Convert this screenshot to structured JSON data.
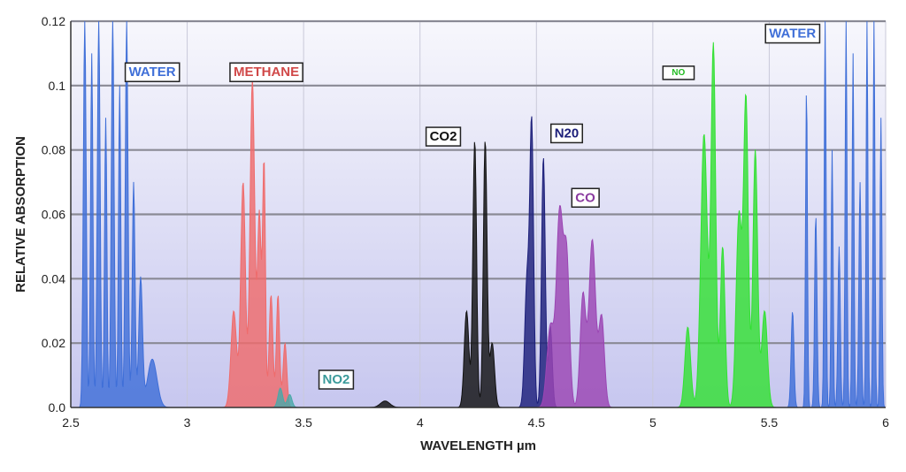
{
  "chart_data": {
    "type": "area",
    "title": "",
    "xlabel": "WAVELENGTH µm",
    "ylabel": "RELATIVE ABSORPTION",
    "xlim": [
      2.5,
      6
    ],
    "ylim": [
      0,
      0.12
    ],
    "x_ticks": [
      "2.5",
      "3",
      "3.5",
      "4",
      "4.5",
      "5",
      "5.5",
      "6"
    ],
    "y_ticks": [
      "0.0",
      "0.02",
      "0.04",
      "0.06",
      "0.08",
      "0.1",
      "0.12"
    ],
    "grid": true,
    "series": [
      {
        "name": "WATER",
        "color": "#3f6fd8",
        "peaks": [
          [
            2.56,
            0.12,
            0.006
          ],
          [
            2.59,
            0.11,
            0.005
          ],
          [
            2.62,
            0.12,
            0.006
          ],
          [
            2.65,
            0.09,
            0.005
          ],
          [
            2.68,
            0.12,
            0.006
          ],
          [
            2.71,
            0.1,
            0.005
          ],
          [
            2.74,
            0.12,
            0.006
          ],
          [
            2.77,
            0.07,
            0.006
          ],
          [
            2.8,
            0.04,
            0.008
          ],
          [
            2.85,
            0.015,
            0.02
          ],
          [
            5.6,
            0.03,
            0.006
          ],
          [
            5.66,
            0.1,
            0.004
          ],
          [
            5.7,
            0.06,
            0.005
          ],
          [
            5.74,
            0.12,
            0.004
          ],
          [
            5.77,
            0.08,
            0.004
          ],
          [
            5.8,
            0.05,
            0.005
          ],
          [
            5.83,
            0.12,
            0.004
          ],
          [
            5.86,
            0.11,
            0.004
          ],
          [
            5.89,
            0.07,
            0.005
          ],
          [
            5.92,
            0.12,
            0.004
          ],
          [
            5.95,
            0.12,
            0.004
          ],
          [
            5.98,
            0.09,
            0.004
          ]
        ]
      },
      {
        "name": "METHANE",
        "color": "#ef6b6b",
        "peaks": [
          [
            3.2,
            0.03,
            0.012
          ],
          [
            3.24,
            0.07,
            0.01
          ],
          [
            3.28,
            0.102,
            0.01
          ],
          [
            3.31,
            0.06,
            0.008
          ],
          [
            3.33,
            0.075,
            0.006
          ],
          [
            3.36,
            0.035,
            0.008
          ],
          [
            3.39,
            0.035,
            0.007
          ],
          [
            3.42,
            0.02,
            0.008
          ]
        ]
      },
      {
        "name": "NO2",
        "color": "#4aa8a8",
        "peaks": [
          [
            3.4,
            0.006,
            0.01
          ],
          [
            3.44,
            0.004,
            0.01
          ]
        ]
      },
      {
        "name": "CO2",
        "color": "#111111",
        "peaks": [
          [
            3.85,
            0.002,
            0.02
          ],
          [
            4.2,
            0.03,
            0.01
          ],
          [
            4.235,
            0.083,
            0.008
          ],
          [
            4.28,
            0.083,
            0.008
          ],
          [
            4.31,
            0.02,
            0.01
          ]
        ]
      },
      {
        "name": "N20",
        "color": "#1c1f7a",
        "peaks": [
          [
            4.46,
            0.04,
            0.01
          ],
          [
            4.48,
            0.085,
            0.008
          ],
          [
            4.53,
            0.078,
            0.008
          ],
          [
            4.56,
            0.025,
            0.008
          ]
        ]
      },
      {
        "name": "CO",
        "color": "#9b46b3",
        "peaks": [
          [
            4.56,
            0.025,
            0.015
          ],
          [
            4.6,
            0.06,
            0.014
          ],
          [
            4.63,
            0.045,
            0.012
          ],
          [
            4.7,
            0.035,
            0.012
          ],
          [
            4.74,
            0.052,
            0.014
          ],
          [
            4.78,
            0.028,
            0.012
          ]
        ]
      },
      {
        "name": "NO",
        "color": "#33e033",
        "peaks": [
          [
            5.15,
            0.025,
            0.012
          ],
          [
            5.22,
            0.085,
            0.014
          ],
          [
            5.26,
            0.112,
            0.01
          ],
          [
            5.3,
            0.05,
            0.01
          ],
          [
            5.37,
            0.06,
            0.012
          ],
          [
            5.4,
            0.095,
            0.01
          ],
          [
            5.44,
            0.08,
            0.01
          ],
          [
            5.48,
            0.03,
            0.012
          ]
        ]
      }
    ],
    "labels": [
      {
        "text": "WATER",
        "x": 2.85,
        "y": 0.104,
        "color": "#3f6fd8"
      },
      {
        "text": "METHANE",
        "x": 3.34,
        "y": 0.104,
        "color": "#d04848"
      },
      {
        "text": "NO2",
        "x": 3.64,
        "y": 0.0085,
        "color": "#3a9a9a"
      },
      {
        "text": "CO2",
        "x": 4.1,
        "y": 0.084,
        "color": "#111111"
      },
      {
        "text": "N20",
        "x": 4.63,
        "y": 0.085,
        "color": "#1c1f7a"
      },
      {
        "text": "CO",
        "x": 4.71,
        "y": 0.065,
        "color": "#8a3aa0"
      },
      {
        "text": "NO",
        "x": 5.11,
        "y": 0.104,
        "color": "#22bb22"
      },
      {
        "text": "WATER",
        "x": 5.6,
        "y": 0.116,
        "color": "#3f6fd8"
      }
    ]
  }
}
